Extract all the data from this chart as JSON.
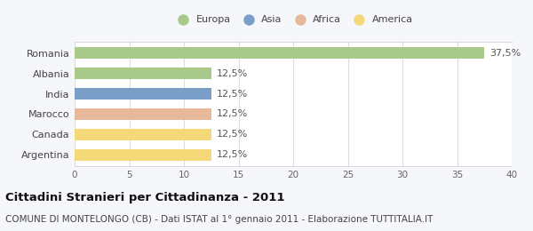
{
  "categories": [
    "Romania",
    "Albania",
    "India",
    "Marocco",
    "Canada",
    "Argentina"
  ],
  "values": [
    37.5,
    12.5,
    12.5,
    12.5,
    12.5,
    12.5
  ],
  "bar_colors": [
    "#a8c98a",
    "#a8c98a",
    "#7b9ec9",
    "#e8b89a",
    "#f5d878",
    "#f5d878"
  ],
  "legend_labels": [
    "Europa",
    "Asia",
    "Africa",
    "America"
  ],
  "legend_colors": [
    "#a8c98a",
    "#7b9ec9",
    "#e8b89a",
    "#f5d878"
  ],
  "value_labels": [
    "37,5%",
    "12,5%",
    "12,5%",
    "12,5%",
    "12,5%",
    "12,5%"
  ],
  "xlim": [
    0,
    40
  ],
  "xticks": [
    0,
    5,
    10,
    15,
    20,
    25,
    30,
    35,
    40
  ],
  "title": "Cittadini Stranieri per Cittadinanza - 2011",
  "subtitle": "COMUNE DI MONTELONGO (CB) - Dati ISTAT al 1° gennaio 2011 - Elaborazione TUTTITALIA.IT",
  "bg_color": "#f5f7fa",
  "plot_bg_color": "#ffffff",
  "title_fontsize": 9.5,
  "subtitle_fontsize": 7.5,
  "label_fontsize": 8,
  "tick_fontsize": 7.5,
  "bar_height": 0.55
}
